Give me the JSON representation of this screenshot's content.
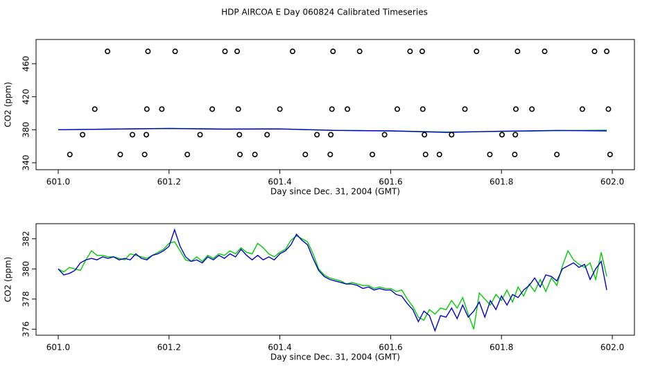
{
  "chart_data": [
    {
      "type": "scatter",
      "title": "HDP AIRCOA E  Day 060824  Calibrated Timeseries",
      "x_label": "Day since Dec. 31, 2004 (GMT)",
      "y_label": "CO2 (ppm)",
      "xlim": [
        600.96,
        602.04
      ],
      "ylim": [
        331.6,
        489.4
      ],
      "xticks": [
        {
          "value": 601,
          "label": "601.0"
        },
        601.2,
        601.4,
        601.6,
        601.8,
        {
          "value": 602,
          "label": "602.0"
        }
      ],
      "yticks": [
        340,
        380,
        420,
        460
      ],
      "color": "#000000",
      "x": [
        601.089,
        601.162,
        601.211,
        601.301,
        601.323,
        601.423,
        601.496,
        601.544,
        601.635,
        601.657,
        601.755,
        601.829,
        601.878,
        601.968,
        601.99,
        601.066,
        601.16,
        601.187,
        601.278,
        601.325,
        601.4,
        601.494,
        601.522,
        601.612,
        601.658,
        601.734,
        601.826,
        601.855,
        601.946,
        601.993,
        601.044,
        601.134,
        601.159,
        601.256,
        601.327,
        601.377,
        601.467,
        601.492,
        601.589,
        601.661,
        601.71,
        601.801,
        601.825,
        601.021,
        601.112,
        601.156,
        601.233,
        601.328,
        601.355,
        601.446,
        601.491,
        601.567,
        601.663,
        601.688,
        601.779,
        601.824,
        601.9,
        601.996
      ],
      "values": [
        475,
        475,
        475,
        475,
        475,
        475,
        475,
        475,
        475,
        475,
        475,
        475,
        475,
        475,
        475,
        405,
        405,
        405,
        405,
        405,
        405,
        405,
        405,
        405,
        405,
        405,
        405,
        405,
        405,
        405,
        374,
        374,
        374,
        374,
        374,
        374,
        374,
        374,
        374,
        374,
        374,
        374,
        374,
        350,
        350,
        350,
        350,
        350,
        350,
        350,
        350,
        350,
        350,
        350,
        350,
        350,
        350,
        350
      ],
      "series": [
        {
          "color": "#00cc00",
          "x": [
            601.0,
            601.1,
            601.2,
            601.3,
            601.4,
            601.5,
            601.6,
            601.7,
            601.8,
            601.9,
            601.99
          ],
          "values": [
            380.0,
            380.8,
            381.7,
            380.9,
            381.1,
            379.3,
            378.7,
            377.3,
            377.9,
            378.9,
            379.5
          ]
        },
        {
          "color": "#0000cc",
          "x": [
            601.0,
            601.1,
            601.2,
            601.3,
            601.4,
            601.5,
            601.6,
            601.7,
            601.8,
            601.9,
            601.99
          ],
          "values": [
            380.0,
            380.8,
            381.5,
            380.7,
            381.0,
            379.2,
            378.6,
            376.8,
            378.2,
            379.2,
            378.6
          ]
        }
      ]
    },
    {
      "type": "line",
      "x_label": "Day since Dec. 31, 2004 (GMT)",
      "y_label": "CO2 (ppm)",
      "xlim": [
        600.96,
        602.04
      ],
      "ylim": [
        375.6,
        383.0
      ],
      "xticks": [
        {
          "value": 601,
          "label": "601.0"
        },
        601.2,
        601.4,
        601.6,
        601.8,
        {
          "value": 602,
          "label": "602.0"
        }
      ],
      "yticks": [
        376,
        378,
        380,
        382
      ],
      "x": [
        601.0,
        601.01,
        601.02,
        601.03,
        601.04,
        601.05,
        601.06,
        601.07,
        601.08,
        601.09,
        601.1,
        601.11,
        601.12,
        601.13,
        601.14,
        601.15,
        601.16,
        601.17,
        601.18,
        601.19,
        601.2,
        601.21,
        601.22,
        601.23,
        601.24,
        601.25,
        601.26,
        601.27,
        601.28,
        601.29,
        601.3,
        601.31,
        601.32,
        601.33,
        601.34,
        601.35,
        601.36,
        601.37,
        601.38,
        601.39,
        601.4,
        601.41,
        601.42,
        601.43,
        601.44,
        601.45,
        601.46,
        601.47,
        601.48,
        601.49,
        601.5,
        601.51,
        601.52,
        601.53,
        601.54,
        601.55,
        601.56,
        601.57,
        601.58,
        601.59,
        601.6,
        601.61,
        601.62,
        601.63,
        601.64,
        601.65,
        601.66,
        601.67,
        601.68,
        601.69,
        601.7,
        601.71,
        601.72,
        601.73,
        601.74,
        601.75,
        601.76,
        601.77,
        601.78,
        601.79,
        601.8,
        601.81,
        601.82,
        601.83,
        601.84,
        601.85,
        601.86,
        601.87,
        601.88,
        601.89,
        601.9,
        601.91,
        601.92,
        601.93,
        601.94,
        601.95,
        601.96,
        601.97,
        601.98,
        601.99
      ],
      "series": [
        {
          "color": "#00cc00",
          "values": [
            380.0,
            379.8,
            380.1,
            380.0,
            379.9,
            380.6,
            381.2,
            380.9,
            380.9,
            380.8,
            380.8,
            380.7,
            380.6,
            381.0,
            380.9,
            380.8,
            380.7,
            380.9,
            381.1,
            381.3,
            381.7,
            381.8,
            381.2,
            380.6,
            380.5,
            380.8,
            380.5,
            380.9,
            380.7,
            381.0,
            380.9,
            381.2,
            381.0,
            381.4,
            381.1,
            381.0,
            381.7,
            381.4,
            381.0,
            380.8,
            381.1,
            381.3,
            381.9,
            382.2,
            382.0,
            381.8,
            381.0,
            380.0,
            379.6,
            379.4,
            379.3,
            379.2,
            379.0,
            379.1,
            379.0,
            378.9,
            378.9,
            378.7,
            378.8,
            378.7,
            378.7,
            378.5,
            378.6,
            378.0,
            377.5,
            376.8,
            376.6,
            377.3,
            377.0,
            377.4,
            377.3,
            377.9,
            377.4,
            378.1,
            377.0,
            376.0,
            378.4,
            378.0,
            377.6,
            378.3,
            377.9,
            378.6,
            377.8,
            378.8,
            378.2,
            379.0,
            378.5,
            379.3,
            378.5,
            379.4,
            378.9,
            380.2,
            381.2,
            380.6,
            380.3,
            380.1,
            380.4,
            379.3,
            381.1,
            379.5
          ]
        },
        {
          "color": "#0000cc",
          "values": [
            380.0,
            379.6,
            379.7,
            379.9,
            380.4,
            380.6,
            380.7,
            380.6,
            380.8,
            380.7,
            380.8,
            380.6,
            380.7,
            380.6,
            381.0,
            380.7,
            380.6,
            380.9,
            381.0,
            381.2,
            381.5,
            382.6,
            381.5,
            380.8,
            380.5,
            380.6,
            380.4,
            380.8,
            380.6,
            380.9,
            380.7,
            381.0,
            380.8,
            381.3,
            380.9,
            380.6,
            380.9,
            380.6,
            380.8,
            380.6,
            381.0,
            381.2,
            381.6,
            382.3,
            381.9,
            381.6,
            380.7,
            379.9,
            379.5,
            379.3,
            379.2,
            379.1,
            379.0,
            379.0,
            378.9,
            378.7,
            378.8,
            378.6,
            378.7,
            378.6,
            378.6,
            378.3,
            378.2,
            377.7,
            377.3,
            376.5,
            377.2,
            376.9,
            375.9,
            376.9,
            376.8,
            377.4,
            376.7,
            377.6,
            376.8,
            377.2,
            377.8,
            376.8,
            377.9,
            377.3,
            378.2,
            377.6,
            378.3,
            378.1,
            378.6,
            378.9,
            379.4,
            378.8,
            379.6,
            379.5,
            379.2,
            380.0,
            380.2,
            380.4,
            380.1,
            380.3,
            379.3,
            380.0,
            380.5,
            378.6
          ]
        }
      ]
    }
  ]
}
